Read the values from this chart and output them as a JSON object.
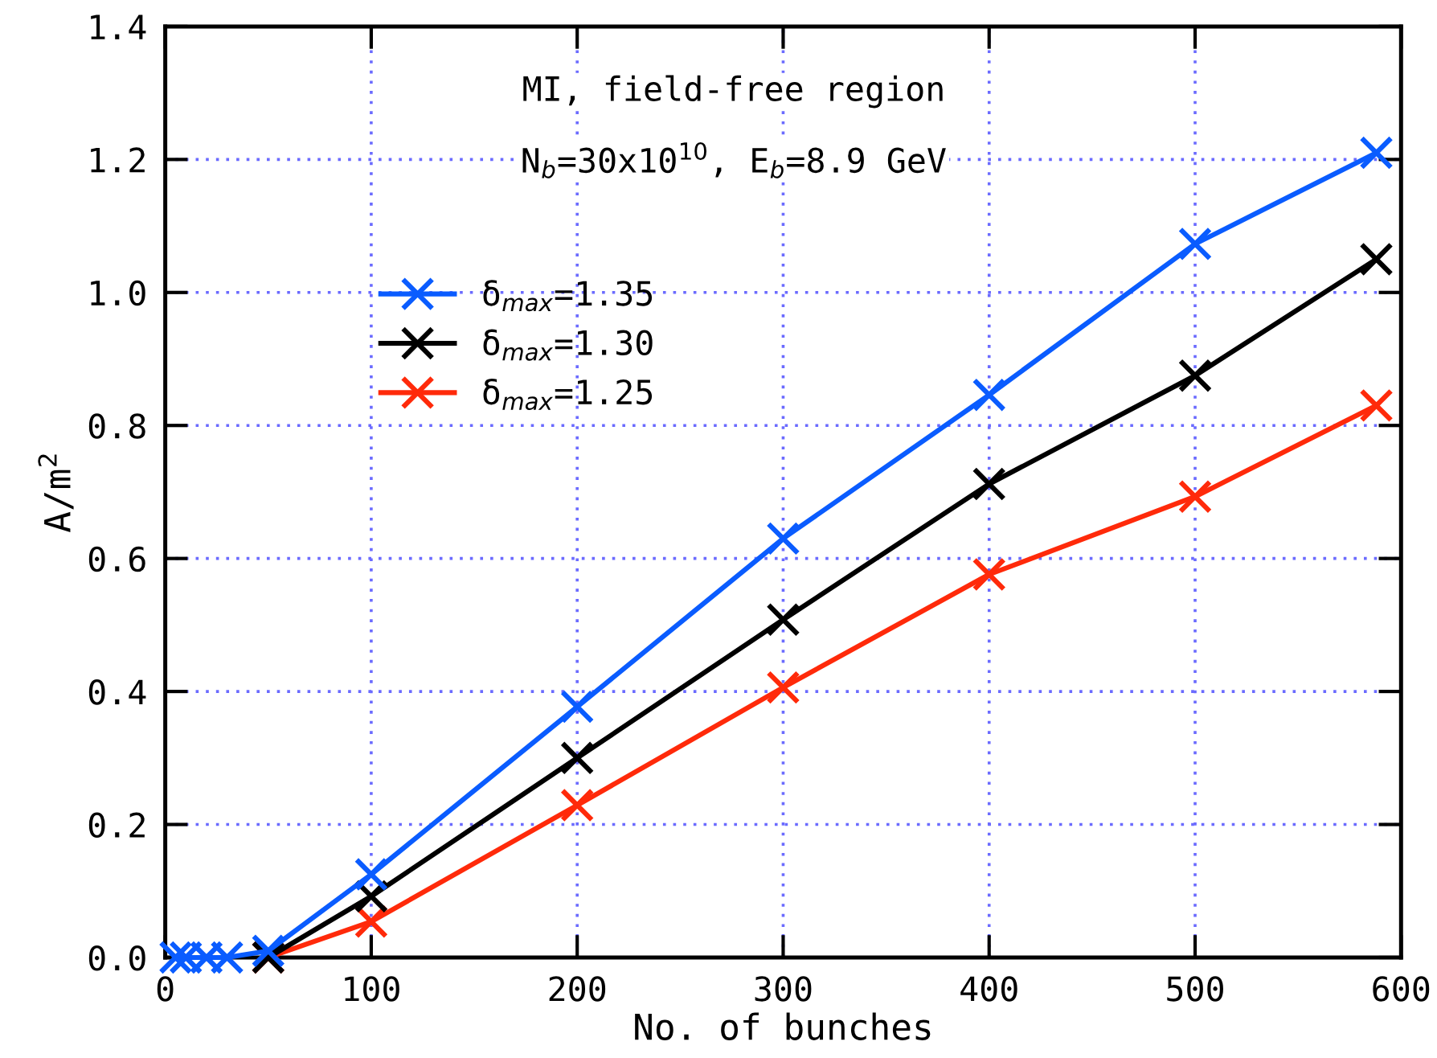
{
  "chart_data": {
    "type": "line",
    "xlabel": "No. of bunches",
    "ylabel": "A/m$^{2}$",
    "annotations": [
      "MI, field-free region",
      "N$_{b}$=30x10$^{10}$, E$_{b}$=8.9 GeV"
    ],
    "x": [
      5,
      10,
      20,
      30,
      50,
      100,
      200,
      300,
      400,
      500,
      588
    ],
    "series": [
      {
        "name": "δ$_{max}$=1.35",
        "color": "#0a5cff",
        "values": [
          0,
          0,
          0,
          0,
          0.01,
          0.125,
          0.377,
          0.63,
          0.846,
          1.073,
          1.21
        ]
      },
      {
        "name": "δ$_{max}$=1.30",
        "color": "#000000",
        "values": [
          null,
          null,
          null,
          null,
          0,
          0.092,
          0.3,
          0.508,
          0.712,
          0.875,
          1.05
        ]
      },
      {
        "name": "δ$_{max}$=1.25",
        "color": "#ff2a0a",
        "values": [
          null,
          null,
          null,
          null,
          0,
          0.054,
          0.229,
          0.406,
          0.576,
          0.693,
          0.83
        ]
      }
    ],
    "xlim": [
      0,
      600
    ],
    "xticks": [
      0,
      100,
      200,
      300,
      400,
      500,
      600
    ],
    "ylim": [
      0,
      1.4
    ],
    "yticks": [
      {
        "value": 0,
        "label": "0.0"
      },
      {
        "value": 0.2,
        "label": "0.2"
      },
      {
        "value": 0.4,
        "label": "0.4"
      },
      {
        "value": 0.6,
        "label": "0.6"
      },
      {
        "value": 0.8,
        "label": "0.8"
      },
      {
        "value": 1.0,
        "label": "1.0"
      },
      {
        "value": 1.2,
        "label": "1.2"
      },
      {
        "value": 1.4,
        "label": "1.4"
      }
    ],
    "grid": true,
    "legend": "upper left",
    "marker": "cross",
    "line_style": "solid"
  }
}
